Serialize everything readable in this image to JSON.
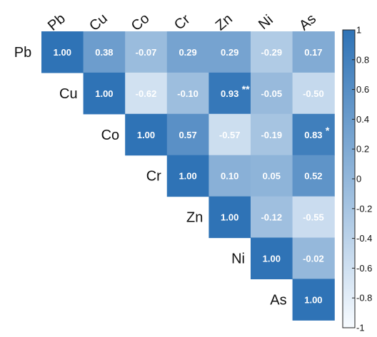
{
  "chart_data": {
    "type": "heatmap",
    "variables": [
      "Pb",
      "Cu",
      "Co",
      "Cr",
      "Zn",
      "Ni",
      "As"
    ],
    "matrix_upper": [
      [
        1.0,
        0.38,
        -0.07,
        0.29,
        0.29,
        -0.29,
        0.17
      ],
      [
        null,
        1.0,
        -0.62,
        -0.1,
        0.93,
        -0.05,
        -0.5
      ],
      [
        null,
        null,
        1.0,
        0.57,
        -0.57,
        -0.19,
        0.83
      ],
      [
        null,
        null,
        null,
        1.0,
        0.1,
        0.05,
        0.52
      ],
      [
        null,
        null,
        null,
        null,
        1.0,
        -0.12,
        -0.55
      ],
      [
        null,
        null,
        null,
        null,
        null,
        1.0,
        -0.02
      ],
      [
        null,
        null,
        null,
        null,
        null,
        null,
        1.0
      ]
    ],
    "value_labels": [
      [
        "1.00",
        "0.38",
        "-0.07",
        "0.29",
        "0.29",
        "-0.29",
        "0.17"
      ],
      [
        "",
        "1.00",
        "-0.62",
        "-0.10",
        "0.93",
        "-0.05",
        "-0.50"
      ],
      [
        "",
        "",
        "1.00",
        "0.57",
        "-0.57",
        "-0.19",
        "0.83"
      ],
      [
        "",
        "",
        "",
        "1.00",
        "0.10",
        "0.05",
        "0.52"
      ],
      [
        "",
        "",
        "",
        "",
        "1.00",
        "-0.12",
        "-0.55"
      ],
      [
        "",
        "",
        "",
        "",
        "",
        "1.00",
        "-0.02"
      ],
      [
        "",
        "",
        "",
        "",
        "",
        "",
        "1.00"
      ]
    ],
    "significance": [
      {
        "row": "Cu",
        "col": "Zn",
        "mark": "**"
      },
      {
        "row": "Co",
        "col": "As",
        "mark": "*"
      }
    ],
    "colorbar": {
      "range": [
        -1,
        1
      ],
      "ticks": [
        "1",
        "0.8",
        "0.6",
        "0.4",
        "0.2",
        "0",
        "-0.2",
        "-0.4",
        "-0.6",
        "-0.8",
        "-1"
      ],
      "color_low": "#f7fbff",
      "color_high": "#2f73b6"
    },
    "grid": false
  }
}
